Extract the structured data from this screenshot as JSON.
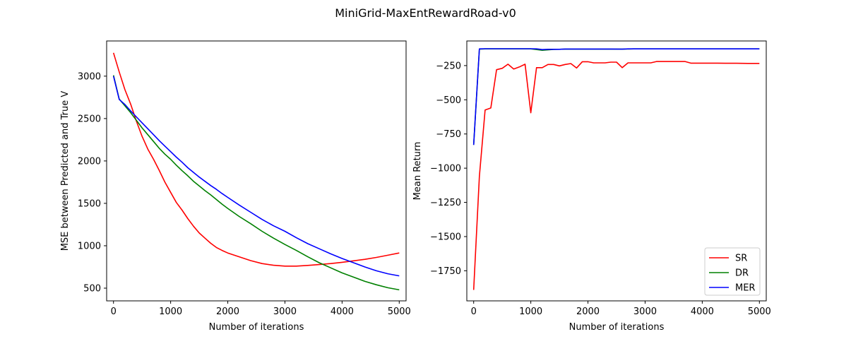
{
  "figure": {
    "title": "MiniGrid-MaxEntRewardRoad-v0"
  },
  "chart_data": [
    {
      "type": "line",
      "xlabel": "Number of iterations",
      "ylabel": "MSE between Predicted and True V",
      "xlim": [
        -120,
        5120
      ],
      "ylim": [
        350,
        3415
      ],
      "xticks": [
        0,
        1000,
        2000,
        3000,
        4000,
        5000
      ],
      "yticks": [
        500,
        1000,
        1500,
        2000,
        2500,
        3000
      ],
      "legend": null,
      "series": [
        {
          "name": "SR",
          "color": "#ff0000",
          "x": [
            0,
            100,
            200,
            300,
            400,
            500,
            600,
            700,
            800,
            900,
            1000,
            1100,
            1200,
            1300,
            1400,
            1500,
            1600,
            1700,
            1800,
            1900,
            2000,
            2200,
            2400,
            2600,
            2800,
            3000,
            3200,
            3400,
            3600,
            3800,
            4000,
            4200,
            4400,
            4600,
            4800,
            5000
          ],
          "y": [
            3275,
            3050,
            2840,
            2670,
            2470,
            2290,
            2140,
            2020,
            1890,
            1750,
            1630,
            1510,
            1420,
            1320,
            1230,
            1150,
            1090,
            1030,
            980,
            945,
            915,
            870,
            825,
            790,
            770,
            760,
            760,
            768,
            778,
            790,
            805,
            822,
            840,
            862,
            888,
            915
          ]
        },
        {
          "name": "DR",
          "color": "#008000",
          "x": [
            0,
            100,
            200,
            300,
            400,
            500,
            600,
            700,
            800,
            900,
            1000,
            1100,
            1200,
            1300,
            1400,
            1500,
            1600,
            1700,
            1800,
            1900,
            2000,
            2200,
            2400,
            2600,
            2800,
            3000,
            3200,
            3400,
            3600,
            3800,
            4000,
            4200,
            4400,
            4600,
            4800,
            5000
          ],
          "y": [
            3010,
            2730,
            2650,
            2570,
            2480,
            2390,
            2310,
            2230,
            2150,
            2080,
            2020,
            1950,
            1885,
            1825,
            1760,
            1705,
            1650,
            1600,
            1545,
            1490,
            1440,
            1345,
            1260,
            1170,
            1090,
            1015,
            945,
            870,
            800,
            740,
            680,
            630,
            580,
            540,
            505,
            480
          ]
        },
        {
          "name": "MER",
          "color": "#0000ff",
          "x": [
            0,
            100,
            200,
            300,
            400,
            500,
            600,
            700,
            800,
            900,
            1000,
            1100,
            1200,
            1300,
            1400,
            1500,
            1600,
            1700,
            1800,
            1900,
            2000,
            2200,
            2400,
            2600,
            2800,
            3000,
            3200,
            3400,
            3600,
            3800,
            4000,
            4200,
            4400,
            4600,
            4800,
            5000
          ],
          "y": [
            3000,
            2725,
            2665,
            2590,
            2520,
            2450,
            2380,
            2310,
            2240,
            2175,
            2110,
            2045,
            1985,
            1920,
            1865,
            1810,
            1760,
            1710,
            1665,
            1615,
            1570,
            1480,
            1395,
            1310,
            1235,
            1170,
            1095,
            1025,
            965,
            905,
            850,
            800,
            750,
            705,
            670,
            645
          ]
        }
      ]
    },
    {
      "type": "line",
      "xlabel": "Number of iterations",
      "ylabel": "Mean Return",
      "xlim": [
        -120,
        5120
      ],
      "ylim": [
        -1970,
        -70
      ],
      "xticks": [
        0,
        1000,
        2000,
        3000,
        4000,
        5000
      ],
      "yticks": [
        -1750,
        -1500,
        -1250,
        -1000,
        -750,
        -500,
        -250
      ],
      "legend": "lower right",
      "series": [
        {
          "name": "SR",
          "color": "#ff0000",
          "x": [
            0,
            100,
            200,
            300,
            400,
            500,
            600,
            700,
            800,
            900,
            1000,
            1100,
            1200,
            1300,
            1400,
            1500,
            1600,
            1700,
            1800,
            1900,
            2000,
            2100,
            2200,
            2300,
            2400,
            2500,
            2600,
            2700,
            2800,
            2900,
            3000,
            3100,
            3200,
            3300,
            3400,
            3500,
            3600,
            3700,
            3800,
            3900,
            4000,
            4200,
            4400,
            4600,
            4800,
            5000
          ],
          "y": [
            -1890,
            -1060,
            -575,
            -560,
            -280,
            -270,
            -240,
            -275,
            -260,
            -240,
            -595,
            -265,
            -265,
            -242,
            -242,
            -252,
            -242,
            -235,
            -268,
            -222,
            -222,
            -230,
            -230,
            -230,
            -225,
            -225,
            -265,
            -230,
            -230,
            -230,
            -230,
            -230,
            -220,
            -220,
            -220,
            -220,
            -220,
            -220,
            -232,
            -232,
            -232,
            -232,
            -233,
            -233,
            -234,
            -234
          ]
        },
        {
          "name": "DR",
          "color": "#008000",
          "x": [
            0,
            100,
            200,
            400,
            600,
            800,
            1000,
            1200,
            1400,
            1600,
            1800,
            2000,
            2200,
            2400,
            2600,
            2800,
            3000,
            3500,
            4000,
            4500,
            5000
          ],
          "y": [
            -830,
            -130,
            -128,
            -128,
            -128,
            -128,
            -128,
            -138,
            -132,
            -130,
            -130,
            -130,
            -130,
            -130,
            -130,
            -128,
            -128,
            -128,
            -128,
            -128,
            -128
          ]
        },
        {
          "name": "MER",
          "color": "#0000ff",
          "x": [
            0,
            100,
            200,
            400,
            600,
            800,
            1000,
            1100,
            1200,
            1300,
            1400,
            1500,
            1600,
            1800,
            2000,
            2200,
            2400,
            2600,
            2700,
            2800,
            3000,
            3500,
            4000,
            4500,
            5000
          ],
          "y": [
            -830,
            -128,
            -127,
            -127,
            -127,
            -127,
            -127,
            -128,
            -133,
            -131,
            -131,
            -131,
            -129,
            -129,
            -129,
            -129,
            -129,
            -130,
            -128,
            -128,
            -128,
            -128,
            -128,
            -128,
            -128
          ]
        }
      ]
    }
  ]
}
